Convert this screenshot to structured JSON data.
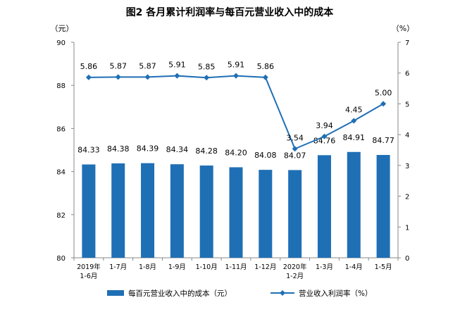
{
  "chart_data": {
    "type": "bar",
    "title": "图2  各月累计利润率与每百元营业收入中的成本",
    "left_unit": "（元）",
    "right_unit": "（%）",
    "categories": [
      [
        "2019年",
        "1-6月"
      ],
      [
        "1-7月"
      ],
      [
        "1-8月"
      ],
      [
        "1-9月"
      ],
      [
        "1-10月"
      ],
      [
        "1-11月"
      ],
      [
        "1-12月"
      ],
      [
        "2020年",
        "1-2月"
      ],
      [
        "1-3月"
      ],
      [
        "1-4月"
      ],
      [
        "1-5月"
      ]
    ],
    "series": [
      {
        "name": "每百元营业收入中的成本（元）",
        "type": "bar",
        "axis": "left",
        "color": "#1f6fb5",
        "values": [
          84.33,
          84.38,
          84.39,
          84.34,
          84.28,
          84.2,
          84.08,
          84.07,
          84.76,
          84.91,
          84.77
        ],
        "labels": [
          "84.33",
          "84.38",
          "84.39",
          "84.34",
          "84.28",
          "84.20",
          "84.08",
          "84.07",
          "84.76",
          "84.91",
          "84.77"
        ]
      },
      {
        "name": "营业收入利润率（%）",
        "type": "line",
        "axis": "right",
        "color": "#1f6fb5",
        "values": [
          5.86,
          5.87,
          5.87,
          5.91,
          5.85,
          5.91,
          5.86,
          3.54,
          3.94,
          4.45,
          5.0
        ],
        "labels": [
          "5.86",
          "5.87",
          "5.87",
          "5.91",
          "5.85",
          "5.91",
          "5.86",
          "3.54",
          "3.94",
          "4.45",
          "5.00"
        ]
      }
    ],
    "y_left": {
      "min": 80,
      "max": 90,
      "ticks": [
        80,
        82,
        84,
        86,
        88,
        90
      ]
    },
    "y_right": {
      "min": 0,
      "max": 7,
      "ticks": [
        0,
        1,
        2,
        3,
        4,
        5,
        6,
        7
      ]
    },
    "grid": false,
    "legend_position": "bottom"
  }
}
